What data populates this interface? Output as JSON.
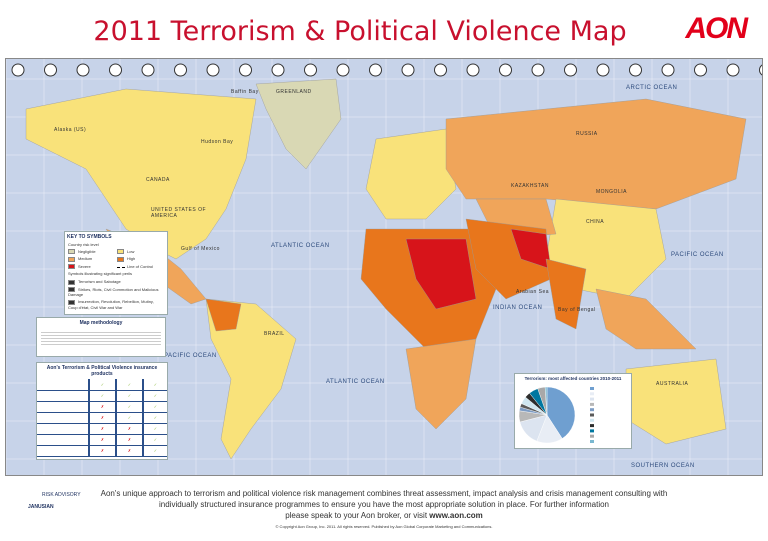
{
  "title": "2011 Terrorism & Political Violence Map",
  "brand": "AON",
  "colors": {
    "negligible": "#d9d8b4",
    "low": "#f9e27a",
    "medium": "#f0a55a",
    "high": "#e8761c",
    "severe": "#d7141a",
    "ocean": "#c7d3e9"
  },
  "labels": {
    "canada": "CANADA",
    "usa": "UNITED STATES OF AMERICA",
    "greenland": "GREENLAND",
    "russia": "RUSSIA",
    "kazakhstan": "KAZAKHSTAN",
    "mongolia": "MONGOLIA",
    "china": "CHINA",
    "brazil": "BRAZIL",
    "australia": "AUSTRALIA",
    "alaska": "Alaska (US)",
    "hudson": "Hudson Bay",
    "gulf_mexico": "Gulf of Mexico",
    "bengal": "Bay of Bengal",
    "arabian": "Arabian Sea",
    "baffin": "Baffin Bay"
  },
  "oceans": {
    "atlantic_n": "ATLANTIC OCEAN",
    "atlantic_s": "ATLANTIC OCEAN",
    "pacific_e": "PACIFIC OCEAN",
    "pacific_w": "PACIFIC OCEAN",
    "indian": "INDIAN OCEAN",
    "arctic": "ARCTIC OCEAN",
    "southern": "SOUTHERN OCEAN"
  },
  "key": {
    "title": "KEY TO SYMBOLS",
    "subtitle": "Country risk level",
    "levels": [
      "Negligible",
      "Low",
      "Medium",
      "High",
      "Severe"
    ],
    "line": "Line of Control",
    "symbols_title": "Symbols illustrating significant perils",
    "symbols": [
      "Terrorism and Sabotage",
      "Strikes, Riots, Civil Commotion and Malicious Damage",
      "Insurrection, Revolution, Rebellion, Mutiny, Coup d'état, Civil War and War"
    ]
  },
  "methodology": {
    "title": "Map methodology"
  },
  "products": {
    "title": "Aon's Terrorism & Political Violence insurance products",
    "rows": [
      [
        "✓",
        "✓",
        "✓"
      ],
      [
        "✓",
        "✓",
        "✓"
      ],
      [
        "✗",
        "✓",
        "✓"
      ],
      [
        "✗",
        "✓",
        "✓"
      ],
      [
        "✗",
        "✗",
        "✓"
      ],
      [
        "✗",
        "✗",
        "✓"
      ],
      [
        "✗",
        "✗",
        "✓"
      ]
    ]
  },
  "pie": {
    "title": "Terrorism: most affected countries 2010-2011"
  },
  "chart_data": {
    "type": "pie",
    "title": "Terrorism: most affected countries 2010-2011",
    "values": [
      38,
      14,
      14,
      6,
      2,
      2,
      4,
      3,
      5,
      4,
      1
    ]
  },
  "footer": {
    "line1": "Aon's unique approach to terrorism and political violence risk management combines threat assessment, impact analysis and crisis management consulting with individually structured insurance programmes to ensure you have the most appropriate solution in place. For further information",
    "line2": "please speak to your Aon broker, or visit ",
    "url": "www.aon.com",
    "copyright": "© Copyright Aon Group, Inc. 2011. All rights reserved. Published by Aon Global Corporate Marketing and Communications.",
    "partner1": "RISK ADVISORY",
    "partner2": "JANUSIAN"
  }
}
